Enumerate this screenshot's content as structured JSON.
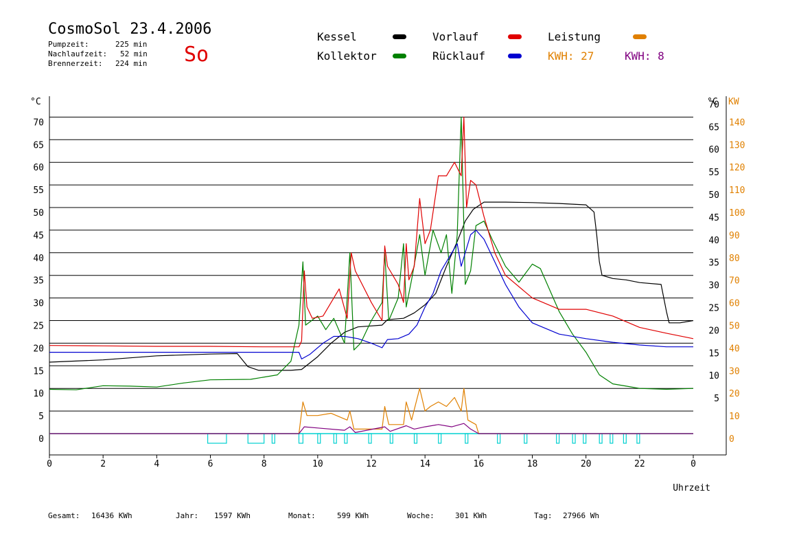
{
  "header": {
    "title": "CosmoSol 23.4.2006",
    "weekday": "So",
    "pump_label": "Pumpzeit:",
    "pump_value": "225 min",
    "nachlauf_label": "Nachlaufzeit:",
    "nachlauf_value": "52 min",
    "brenner_label": "Brennerzeit:",
    "brenner_value": "224 min"
  },
  "legend": {
    "kessel": "Kessel",
    "kollektor": "Kollektor",
    "vorlauf": "Vorlauf",
    "ruecklauf": "Rücklauf",
    "leistung": "Leistung",
    "kwh1": "KWH: 27",
    "kwh2": "KWH: 8"
  },
  "colors": {
    "kessel": "#000000",
    "kollektor": "#008000",
    "vorlauf": "#e00000",
    "ruecklauf": "#0000d0",
    "leistung": "#e08000",
    "leistung2": "#800080",
    "pump": "#00d0d0",
    "orange_axis": "#e08000",
    "weekday": "#e00000"
  },
  "footer": {
    "gesamt_label": "Gesamt:",
    "gesamt_value": "16436 KWh",
    "jahr_label": "Jahr:",
    "jahr_value": "1597 KWh",
    "monat_label": "Monat:",
    "monat_value": "599 KWh",
    "woche_label": "Woche:",
    "woche_value": "301 KWh",
    "tag_label": "Tag:",
    "tag_value": "27966 Wh"
  },
  "chart_data": {
    "type": "line",
    "title": "CosmoSol 23.4.2006",
    "xlabel": "Uhrzeit",
    "ylabel_left": "°C",
    "ylabel_right_temp": "°C",
    "ylabel_right_power": "KW",
    "xlim": [
      0,
      24
    ],
    "ylim": [
      0,
      70
    ],
    "x_ticks": [
      "0",
      "2",
      "4",
      "6",
      "8",
      "10",
      "12",
      "14",
      "16",
      "18",
      "20",
      "22",
      "0"
    ],
    "y_ticks_left": [
      "0",
      "5",
      "10",
      "15",
      "20",
      "25",
      "30",
      "35",
      "40",
      "45",
      "50",
      "55",
      "60",
      "65",
      "70"
    ],
    "y_ticks_right_temp": [
      "5",
      "10",
      "15",
      "20",
      "25",
      "30",
      "35",
      "40",
      "45",
      "50",
      "55",
      "60",
      "65",
      "70"
    ],
    "y_ticks_right_kw": [
      "0",
      "10",
      "20",
      "30",
      "40",
      "50",
      "60",
      "70",
      "80",
      "90",
      "100",
      "110",
      "120",
      "130",
      "140"
    ],
    "grid": true,
    "series": [
      {
        "name": "Kessel",
        "color": "#000000",
        "points": [
          [
            0,
            15.8
          ],
          [
            2,
            16.3
          ],
          [
            4,
            17.2
          ],
          [
            6,
            17.6
          ],
          [
            7,
            17.7
          ],
          [
            7.4,
            14.8
          ],
          [
            7.8,
            14
          ],
          [
            9,
            14
          ],
          [
            9.4,
            14.2
          ],
          [
            10,
            17
          ],
          [
            10.5,
            20
          ],
          [
            11,
            22.4
          ],
          [
            11.5,
            23.6
          ],
          [
            12.4,
            24
          ],
          [
            12.6,
            25.2
          ],
          [
            13.2,
            25.5
          ],
          [
            13.6,
            26.7
          ],
          [
            14,
            28.5
          ],
          [
            14.4,
            31
          ],
          [
            14.8,
            37
          ],
          [
            15.2,
            42.5
          ],
          [
            15.5,
            47
          ],
          [
            15.8,
            49.6
          ],
          [
            16.2,
            51.2
          ],
          [
            17,
            51.2
          ],
          [
            18,
            51.1
          ],
          [
            19,
            50.9
          ],
          [
            20,
            50.6
          ],
          [
            20.3,
            49
          ],
          [
            20.4,
            44
          ],
          [
            20.5,
            38
          ],
          [
            20.6,
            35
          ],
          [
            21,
            34.3
          ],
          [
            21.5,
            34
          ],
          [
            22,
            33.4
          ],
          [
            22.8,
            33
          ],
          [
            23,
            27
          ],
          [
            23.1,
            24.5
          ],
          [
            23.5,
            24.5
          ],
          [
            24,
            25
          ]
        ]
      },
      {
        "name": "Kollektor",
        "color": "#008000",
        "points": [
          [
            0,
            9.8
          ],
          [
            1,
            9.7
          ],
          [
            2,
            10.6
          ],
          [
            3,
            10.5
          ],
          [
            4,
            10.3
          ],
          [
            5,
            11.2
          ],
          [
            6,
            11.9
          ],
          [
            7.5,
            12
          ],
          [
            8.5,
            13
          ],
          [
            9,
            16
          ],
          [
            9.3,
            24
          ],
          [
            9.45,
            38
          ],
          [
            9.55,
            24
          ],
          [
            10,
            26
          ],
          [
            10.3,
            23
          ],
          [
            10.6,
            25.5
          ],
          [
            11,
            20
          ],
          [
            11.2,
            40
          ],
          [
            11.35,
            18.5
          ],
          [
            11.6,
            20
          ],
          [
            12,
            25
          ],
          [
            12.4,
            29
          ],
          [
            12.5,
            40
          ],
          [
            12.65,
            25
          ],
          [
            13,
            30
          ],
          [
            13.2,
            42
          ],
          [
            13.3,
            28
          ],
          [
            13.5,
            34
          ],
          [
            13.8,
            44
          ],
          [
            14,
            35
          ],
          [
            14.3,
            45
          ],
          [
            14.6,
            40
          ],
          [
            14.8,
            44
          ],
          [
            15,
            31
          ],
          [
            15.2,
            44
          ],
          [
            15.35,
            70
          ],
          [
            15.5,
            33
          ],
          [
            15.7,
            36
          ],
          [
            15.9,
            46
          ],
          [
            16.2,
            47
          ],
          [
            16.5,
            43
          ],
          [
            17,
            37
          ],
          [
            17.5,
            33.5
          ],
          [
            18,
            37.5
          ],
          [
            18.3,
            36.5
          ],
          [
            19,
            27
          ],
          [
            19.5,
            22
          ],
          [
            20,
            18
          ],
          [
            20.5,
            13
          ],
          [
            21,
            11
          ],
          [
            21.5,
            10.5
          ],
          [
            22,
            10
          ],
          [
            23,
            9.8
          ],
          [
            24,
            10
          ]
        ]
      },
      {
        "name": "Vorlauf",
        "color": "#e00000",
        "points": [
          [
            0,
            19.5
          ],
          [
            2,
            19.4
          ],
          [
            4,
            19.3
          ],
          [
            6,
            19.3
          ],
          [
            8,
            19.2
          ],
          [
            9.3,
            19.2
          ],
          [
            9.4,
            20.5
          ],
          [
            9.5,
            36
          ],
          [
            9.6,
            28
          ],
          [
            9.8,
            25.5
          ],
          [
            10.2,
            26
          ],
          [
            10.6,
            30
          ],
          [
            10.8,
            32
          ],
          [
            11.1,
            25.5
          ],
          [
            11.25,
            40
          ],
          [
            11.4,
            36
          ],
          [
            12,
            29
          ],
          [
            12.4,
            25
          ],
          [
            12.5,
            41.5
          ],
          [
            12.6,
            37
          ],
          [
            13,
            33
          ],
          [
            13.2,
            29
          ],
          [
            13.3,
            42
          ],
          [
            13.4,
            34
          ],
          [
            13.6,
            37
          ],
          [
            13.8,
            52
          ],
          [
            14,
            42
          ],
          [
            14.2,
            45
          ],
          [
            14.5,
            57
          ],
          [
            14.8,
            57
          ],
          [
            15.1,
            60
          ],
          [
            15.35,
            57
          ],
          [
            15.45,
            70
          ],
          [
            15.55,
            50
          ],
          [
            15.7,
            56
          ],
          [
            15.9,
            55
          ],
          [
            16.2,
            48
          ],
          [
            16.6,
            40
          ],
          [
            17,
            35
          ],
          [
            18,
            30
          ],
          [
            19,
            27.5
          ],
          [
            20,
            27.5
          ],
          [
            21,
            26
          ],
          [
            22,
            23.5
          ],
          [
            23,
            22.2
          ],
          [
            24,
            21
          ]
        ]
      },
      {
        "name": "Rücklauf",
        "color": "#0000d0",
        "points": [
          [
            0,
            18
          ],
          [
            2,
            18
          ],
          [
            4,
            18
          ],
          [
            6,
            18
          ],
          [
            8,
            18
          ],
          [
            9.3,
            18
          ],
          [
            9.4,
            16.5
          ],
          [
            9.7,
            17.5
          ],
          [
            10.2,
            20
          ],
          [
            10.6,
            21.5
          ],
          [
            11,
            21.5
          ],
          [
            11.5,
            21
          ],
          [
            12,
            20
          ],
          [
            12.4,
            19
          ],
          [
            12.6,
            20.8
          ],
          [
            13,
            21
          ],
          [
            13.4,
            22
          ],
          [
            13.7,
            24
          ],
          [
            14,
            28
          ],
          [
            14.3,
            31
          ],
          [
            14.6,
            36
          ],
          [
            15,
            40
          ],
          [
            15.2,
            42
          ],
          [
            15.35,
            37
          ],
          [
            15.5,
            40
          ],
          [
            15.7,
            44
          ],
          [
            15.9,
            45
          ],
          [
            16.2,
            43
          ],
          [
            16.6,
            38
          ],
          [
            17,
            33
          ],
          [
            17.5,
            28
          ],
          [
            18,
            24.5
          ],
          [
            19,
            22
          ],
          [
            20,
            21
          ],
          [
            21,
            20.2
          ],
          [
            22,
            19.6
          ],
          [
            23,
            19.2
          ],
          [
            24,
            19.2
          ]
        ]
      },
      {
        "name": "Leistung",
        "color": "#e08000",
        "unit": "KW",
        "points": [
          [
            0,
            0
          ],
          [
            9.3,
            0
          ],
          [
            9.45,
            14
          ],
          [
            9.6,
            8
          ],
          [
            10,
            8
          ],
          [
            10.5,
            9
          ],
          [
            11.1,
            6
          ],
          [
            11.2,
            10
          ],
          [
            11.35,
            2
          ],
          [
            12.4,
            2
          ],
          [
            12.5,
            12
          ],
          [
            12.65,
            4
          ],
          [
            13.2,
            4
          ],
          [
            13.3,
            14
          ],
          [
            13.5,
            6
          ],
          [
            13.8,
            20
          ],
          [
            14,
            10
          ],
          [
            14.2,
            12
          ],
          [
            14.5,
            14
          ],
          [
            14.8,
            12
          ],
          [
            15.1,
            16
          ],
          [
            15.35,
            10
          ],
          [
            15.45,
            20
          ],
          [
            15.6,
            6
          ],
          [
            15.9,
            4
          ],
          [
            16,
            0
          ],
          [
            24,
            0
          ]
        ]
      },
      {
        "name": "Leistung 2",
        "color": "#800080",
        "unit": "KW",
        "points": [
          [
            0,
            0
          ],
          [
            9.3,
            0
          ],
          [
            9.5,
            3
          ],
          [
            10,
            2.5
          ],
          [
            11,
            1.5
          ],
          [
            11.2,
            3
          ],
          [
            11.4,
            0.5
          ],
          [
            12.5,
            3
          ],
          [
            12.7,
            1
          ],
          [
            13.3,
            3.5
          ],
          [
            13.6,
            2
          ],
          [
            14,
            3
          ],
          [
            14.5,
            4
          ],
          [
            15,
            3
          ],
          [
            15.45,
            4.5
          ],
          [
            15.7,
            2
          ],
          [
            16,
            0
          ],
          [
            24,
            0
          ]
        ]
      }
    ],
    "pump_segments": [
      [
        5.9,
        6.6
      ],
      [
        7.4,
        8.0
      ],
      [
        8.3,
        8.4
      ],
      [
        9.3,
        9.45
      ],
      [
        10.0,
        10.1
      ],
      [
        10.6,
        10.7
      ],
      [
        11.0,
        11.1
      ],
      [
        11.9,
        12.0
      ],
      [
        12.7,
        12.8
      ],
      [
        13.6,
        13.7
      ],
      [
        14.5,
        14.6
      ],
      [
        15.5,
        15.6
      ],
      [
        16.7,
        16.8
      ],
      [
        17.7,
        17.8
      ],
      [
        18.9,
        19.0
      ],
      [
        19.5,
        19.6
      ],
      [
        19.9,
        20.0
      ],
      [
        20.5,
        20.6
      ],
      [
        20.9,
        21.0
      ],
      [
        21.4,
        21.5
      ],
      [
        21.9,
        22.0
      ]
    ],
    "legend_position": "top"
  }
}
